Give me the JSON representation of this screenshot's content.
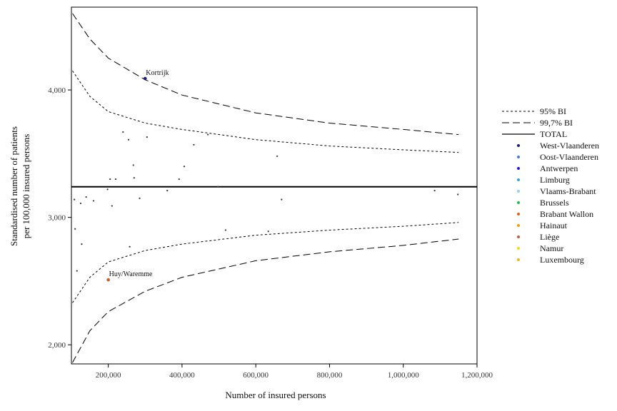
{
  "chart_data": {
    "type": "scatter",
    "subtype": "funnel-plot",
    "xlabel": "Number of insured persons",
    "ylabel": [
      "Standardised number of patients",
      "per 100,000 insured persons"
    ],
    "xlim": [
      100000,
      1200000
    ],
    "ylim": [
      1850,
      4650
    ],
    "x_ticks": [
      {
        "value": 200000,
        "label": "200,000"
      },
      {
        "value": 400000,
        "label": "400,000"
      },
      {
        "value": 600000,
        "label": "600,000"
      },
      {
        "value": 800000,
        "label": "800,000"
      },
      {
        "value": 1000000,
        "label": "1,000,000"
      },
      {
        "value": 1200000,
        "label": "1,200,000"
      }
    ],
    "y_ticks": [
      {
        "value": 2000,
        "label": "2,000"
      },
      {
        "value": 3000,
        "label": "3,000"
      },
      {
        "value": 4000,
        "label": "4,000"
      }
    ],
    "grid": false,
    "legend_position": "right",
    "total": 3240,
    "limits": {
      "ci95": {
        "label": "95% BI",
        "upper": [
          [
            103000,
            4150
          ],
          [
            150000,
            3950
          ],
          [
            200000,
            3830
          ],
          [
            300000,
            3740
          ],
          [
            400000,
            3690
          ],
          [
            600000,
            3610
          ],
          [
            800000,
            3560
          ],
          [
            1000000,
            3530
          ],
          [
            1150000,
            3510
          ]
        ],
        "lower": [
          [
            103000,
            2330
          ],
          [
            150000,
            2530
          ],
          [
            200000,
            2650
          ],
          [
            300000,
            2740
          ],
          [
            400000,
            2790
          ],
          [
            600000,
            2860
          ],
          [
            800000,
            2900
          ],
          [
            1000000,
            2930
          ],
          [
            1150000,
            2960
          ]
        ]
      },
      "ci997": {
        "label": "99,7% BI",
        "upper": [
          [
            103000,
            4600
          ],
          [
            150000,
            4400
          ],
          [
            200000,
            4250
          ],
          [
            300000,
            4080
          ],
          [
            400000,
            3960
          ],
          [
            600000,
            3820
          ],
          [
            800000,
            3740
          ],
          [
            1000000,
            3690
          ],
          [
            1150000,
            3650
          ]
        ],
        "lower": [
          [
            103000,
            1860
          ],
          [
            150000,
            2110
          ],
          [
            200000,
            2260
          ],
          [
            300000,
            2420
          ],
          [
            400000,
            2530
          ],
          [
            600000,
            2660
          ],
          [
            800000,
            2730
          ],
          [
            1000000,
            2780
          ],
          [
            1150000,
            2830
          ]
        ]
      },
      "total_label": "TOTAL"
    },
    "highlighted": [
      {
        "label": "Kortrijk",
        "x": 300000,
        "y": 4090,
        "color": "#1a1a80"
      },
      {
        "label": "Huy/Waremme",
        "x": 200000,
        "y": 2510,
        "color": "#c0603a"
      }
    ],
    "points": [
      [
        108000,
        3140
      ],
      [
        110000,
        2910
      ],
      [
        115000,
        2580
      ],
      [
        125000,
        3110
      ],
      [
        128000,
        2790
      ],
      [
        140000,
        3160
      ],
      [
        160000,
        3130
      ],
      [
        198000,
        3220
      ],
      [
        205000,
        3300
      ],
      [
        210000,
        3090
      ],
      [
        220000,
        3300
      ],
      [
        240000,
        3670
      ],
      [
        255000,
        3610
      ],
      [
        258000,
        2770
      ],
      [
        268000,
        3410
      ],
      [
        270000,
        3310
      ],
      [
        285000,
        3150
      ],
      [
        305000,
        3630
      ],
      [
        360000,
        3210
      ],
      [
        392000,
        3300
      ],
      [
        406000,
        3400
      ],
      [
        432000,
        3570
      ],
      [
        470000,
        3650
      ],
      [
        497000,
        3240
      ],
      [
        518000,
        2900
      ],
      [
        634000,
        2890
      ],
      [
        658000,
        3480
      ],
      [
        670000,
        3140
      ],
      [
        1085000,
        3210
      ],
      [
        1148000,
        3180
      ]
    ],
    "series": [
      {
        "name": "West-Vlaanderen",
        "color": "#1a1a80"
      },
      {
        "name": "Oost-Vlaanderen",
        "color": "#4a7fd4"
      },
      {
        "name": "Antwerpen",
        "color": "#1a1ae0"
      },
      {
        "name": "Limburg",
        "color": "#3a9ee0"
      },
      {
        "name": "Vlaams-Brabant",
        "color": "#8fd0f0"
      },
      {
        "name": "Brussels",
        "color": "#2fb84a"
      },
      {
        "name": "Brabant Wallon",
        "color": "#d2691e"
      },
      {
        "name": "Hainaut",
        "color": "#f39c12"
      },
      {
        "name": "Liège",
        "color": "#c0603a"
      },
      {
        "name": "Namur",
        "color": "#f5d90a"
      },
      {
        "name": "Luxembourg",
        "color": "#f0b429"
      }
    ]
  }
}
